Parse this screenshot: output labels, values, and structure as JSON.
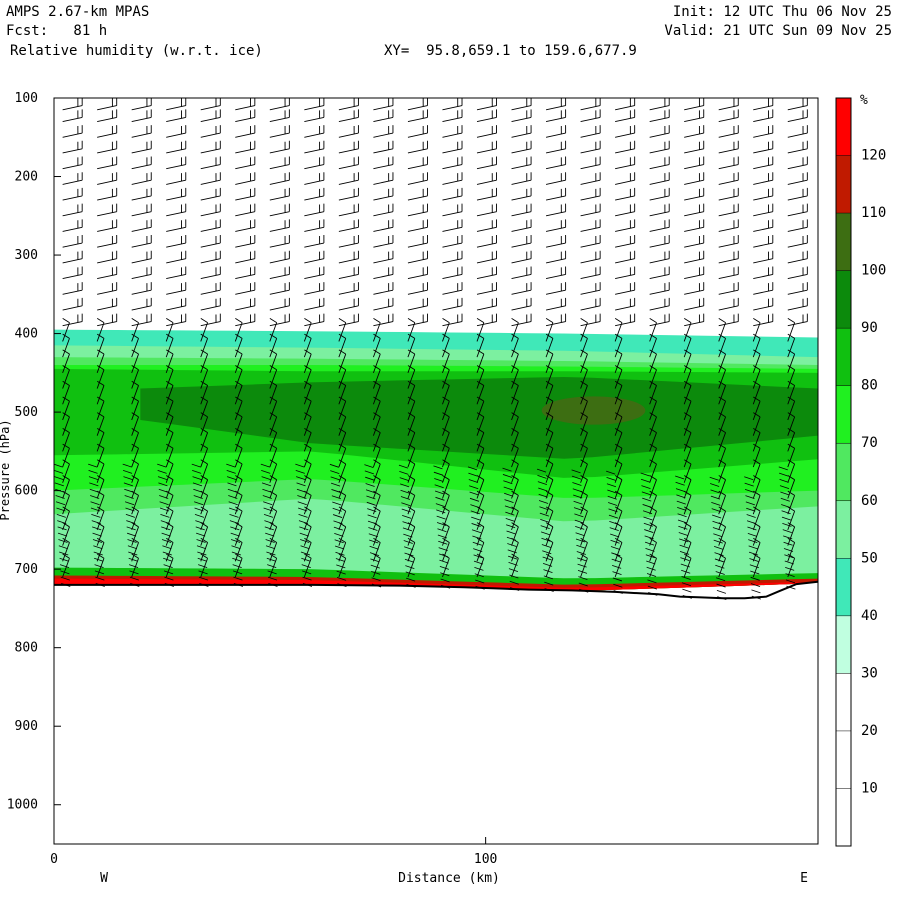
{
  "header": {
    "model": "AMPS 2.67-km MPAS",
    "init": "Init: 12 UTC Thu 06 Nov 25",
    "fcst": "Fcst:   81 h",
    "valid": "Valid: 21 UTC Sun 09 Nov 25",
    "field": "Relative humidity (w.r.t. ice)",
    "xy": "XY=  95.8,659.1 to 159.6,677.9"
  },
  "chart_data": {
    "type": "heatmap",
    "title": "Relative humidity (w.r.t. ice)",
    "xlabel": "Distance (km)",
    "ylabel": "Pressure (hPa)",
    "xlim": [
      0,
      177
    ],
    "ylim": [
      1050,
      100
    ],
    "x_ticks": [
      0,
      100
    ],
    "y_ticks": [
      100,
      200,
      300,
      400,
      500,
      600,
      700,
      800,
      900,
      1000
    ],
    "x_end_labels": {
      "left": "W",
      "right": "E"
    },
    "colorbar": {
      "unit": "%",
      "tick_labels": [
        10,
        20,
        30,
        40,
        50,
        60,
        70,
        80,
        90,
        100,
        110,
        120
      ],
      "bins": [
        {
          "min": 0,
          "max": 30,
          "color": "#ffffff"
        },
        {
          "min": 30,
          "max": 40,
          "color": "#c0ffe0"
        },
        {
          "min": 40,
          "max": 50,
          "color": "#40e8b8"
        },
        {
          "min": 50,
          "max": 60,
          "color": "#7cf0a0"
        },
        {
          "min": 60,
          "max": 70,
          "color": "#50e860"
        },
        {
          "min": 70,
          "max": 80,
          "color": "#20f020"
        },
        {
          "min": 80,
          "max": 90,
          "color": "#10c010"
        },
        {
          "min": 90,
          "max": 100,
          "color": "#0c8a0c"
        },
        {
          "min": 100,
          "max": 110,
          "color": "#3d6e12"
        },
        {
          "min": 110,
          "max": 120,
          "color": "#c01a00"
        },
        {
          "min": 120,
          "max": 130,
          "color": "#ff0000"
        }
      ]
    },
    "terrain": {
      "x": [
        0,
        20,
        40,
        60,
        80,
        95,
        100,
        110,
        120,
        130,
        140,
        145,
        150,
        155,
        160,
        165,
        168,
        172,
        177
      ],
      "pressure": [
        720,
        720,
        720,
        720,
        721,
        723,
        724,
        726,
        727,
        729,
        732,
        735,
        736,
        737,
        737,
        735,
        728,
        719,
        716
      ]
    },
    "rh_layers": [
      {
        "band": 2,
        "x": [
          0,
          60,
          120,
          177
        ],
        "top": [
          395,
          397,
          400,
          405
        ],
        "bottom": [
          720,
          720,
          728,
          718
        ]
      },
      {
        "band": 3,
        "x": [
          0,
          60,
          120,
          177
        ],
        "top": [
          415,
          418,
          422,
          430
        ],
        "bottom": [
          700,
          690,
          720,
          710
        ]
      },
      {
        "band": 4,
        "x": [
          0,
          60,
          120,
          177
        ],
        "top": [
          430,
          432,
          435,
          440
        ],
        "bottom": [
          630,
          610,
          640,
          620
        ]
      },
      {
        "band": 5,
        "x": [
          0,
          60,
          120,
          177
        ],
        "top": [
          440,
          440,
          442,
          445
        ],
        "bottom": [
          600,
          585,
          610,
          600
        ]
      },
      {
        "band": 6,
        "x": [
          0,
          60,
          120,
          177
        ],
        "top": [
          445,
          448,
          448,
          450
        ],
        "bottom": [
          555,
          550,
          585,
          560
        ]
      },
      {
        "band": 7,
        "x": [
          20,
          60,
          120,
          177
        ],
        "top": [
          470,
          462,
          455,
          470
        ],
        "bottom": [
          510,
          540,
          560,
          530
        ]
      },
      {
        "band": 3,
        "x": [
          0,
          60,
          120,
          177
        ],
        "top": [
          680,
          680,
          700,
          690
        ],
        "bottom": [
          720,
          720,
          728,
          718
        ]
      },
      {
        "band": 6,
        "x": [
          0,
          60,
          120,
          177
        ],
        "top": [
          698,
          700,
          712,
          705
        ],
        "bottom": [
          720,
          720,
          728,
          718
        ]
      },
      {
        "band": 9,
        "x": [
          0,
          60,
          120,
          177
        ],
        "top": [
          708,
          710,
          720,
          712
        ],
        "bottom": [
          720,
          720,
          728,
          718
        ]
      },
      {
        "band": 10,
        "x": [
          0,
          60,
          120,
          177
        ],
        "top": [
          712,
          714,
          724,
          716
        ],
        "bottom": [
          720,
          720,
          728,
          718
        ]
      }
    ],
    "moist_core": {
      "band": 8,
      "x_center": 125,
      "p_center": 498,
      "x_halfwidth": 12,
      "p_halfwidth": 18
    },
    "wind_barbs": {
      "x_spacing_km": 8,
      "p_levels_upper": [
        100,
        115,
        130,
        150,
        170,
        190,
        210,
        230,
        250,
        270,
        290,
        310,
        330,
        350,
        370,
        390,
        410,
        430,
        450,
        470,
        490,
        510,
        530,
        550,
        570,
        590,
        610,
        630,
        650,
        670,
        690,
        710
      ],
      "note_style": "westerly barbs"
    }
  }
}
